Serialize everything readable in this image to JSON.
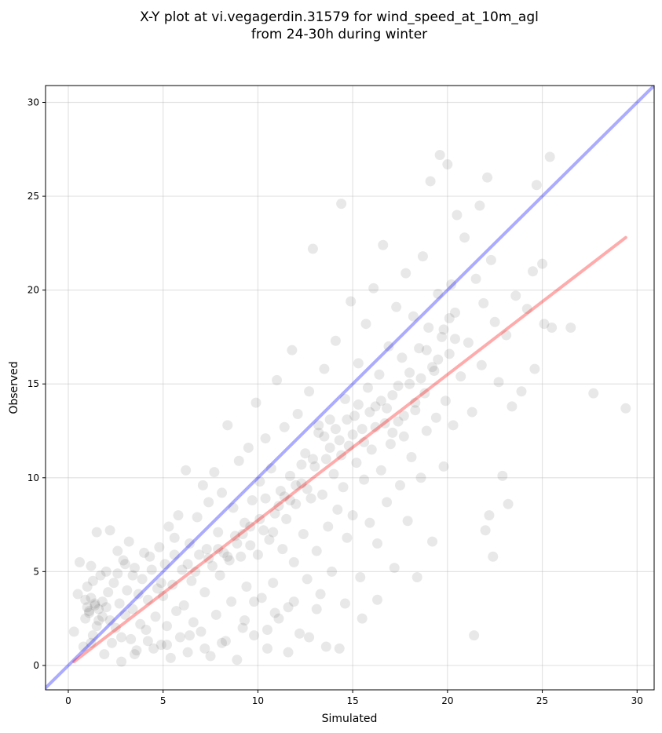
{
  "chart_data": {
    "type": "scatter",
    "title_line1": "X-Y plot at vi.vegagerdin.31579 for wind_speed_at_10m_agl",
    "title_line2": "from 24-30h during winter",
    "xlabel": "Simulated",
    "ylabel": "Observed",
    "xlim": [
      -1.2,
      30.9
    ],
    "ylim": [
      -1.3,
      30.9
    ],
    "xticks": [
      0,
      5,
      10,
      15,
      20,
      25,
      30
    ],
    "yticks": [
      0,
      5,
      10,
      15,
      20,
      25,
      30
    ],
    "grid": true,
    "colors": {
      "points": "#000000",
      "identity_line": "#0000ff",
      "fit_line": "#ff0000"
    },
    "identity_line": {
      "x": [
        -1.2,
        30.9
      ],
      "y": [
        -1.2,
        30.9
      ]
    },
    "fit_line": {
      "x": [
        0.3,
        29.4
      ],
      "y": [
        0.2,
        22.8
      ]
    },
    "points": [
      [
        0.3,
        1.8
      ],
      [
        0.5,
        3.8
      ],
      [
        0.6,
        5.5
      ],
      [
        0.8,
        1.0
      ],
      [
        0.9,
        2.5
      ],
      [
        1.0,
        3.1
      ],
      [
        1.0,
        4.2
      ],
      [
        1.1,
        2.9
      ],
      [
        1.2,
        3.6
      ],
      [
        1.2,
        5.3
      ],
      [
        1.3,
        1.6
      ],
      [
        1.4,
        3.2
      ],
      [
        1.5,
        7.1
      ],
      [
        1.6,
        2.4
      ],
      [
        1.7,
        4.8
      ],
      [
        1.8,
        3.4
      ],
      [
        1.9,
        0.6
      ],
      [
        2.0,
        5.0
      ],
      [
        2.1,
        3.9
      ],
      [
        2.2,
        7.2
      ],
      [
        2.3,
        1.2
      ],
      [
        2.4,
        4.4
      ],
      [
        2.5,
        2.0
      ],
      [
        2.6,
        6.1
      ],
      [
        2.7,
        3.3
      ],
      [
        2.8,
        0.2
      ],
      [
        2.9,
        5.6
      ],
      [
        3.0,
        2.7
      ],
      [
        3.1,
        4.0
      ],
      [
        3.2,
        6.6
      ],
      [
        3.3,
        1.4
      ],
      [
        3.4,
        3.0
      ],
      [
        3.5,
        5.2
      ],
      [
        3.6,
        0.8
      ],
      [
        3.8,
        2.2
      ],
      [
        3.9,
        4.6
      ],
      [
        4.0,
        6.0
      ],
      [
        4.1,
        1.9
      ],
      [
        4.2,
        3.5
      ],
      [
        4.3,
        5.8
      ],
      [
        4.5,
        0.9
      ],
      [
        4.6,
        2.6
      ],
      [
        4.7,
        4.1
      ],
      [
        4.8,
        6.3
      ],
      [
        4.9,
        1.1
      ],
      [
        5.0,
        3.7
      ],
      [
        5.1,
        5.4
      ],
      [
        5.2,
        2.1
      ],
      [
        5.3,
        7.4
      ],
      [
        5.4,
        0.4
      ],
      [
        5.5,
        4.3
      ],
      [
        5.6,
        6.8
      ],
      [
        5.7,
        2.9
      ],
      [
        5.8,
        8.0
      ],
      [
        5.9,
        1.5
      ],
      [
        6.0,
        5.1
      ],
      [
        6.1,
        3.2
      ],
      [
        6.2,
        10.4
      ],
      [
        6.3,
        0.7
      ],
      [
        6.4,
        6.5
      ],
      [
        6.5,
        4.5
      ],
      [
        6.6,
        2.3
      ],
      [
        6.8,
        7.9
      ],
      [
        6.9,
        5.9
      ],
      [
        7.0,
        1.8
      ],
      [
        7.1,
        9.6
      ],
      [
        7.2,
        3.9
      ],
      [
        7.3,
        6.2
      ],
      [
        7.4,
        8.7
      ],
      [
        7.5,
        0.5
      ],
      [
        7.6,
        5.3
      ],
      [
        7.7,
        10.3
      ],
      [
        7.8,
        2.7
      ],
      [
        7.9,
        7.1
      ],
      [
        8.0,
        4.8
      ],
      [
        8.1,
        9.2
      ],
      [
        8.2,
        6.0
      ],
      [
        8.3,
        1.3
      ],
      [
        8.4,
        12.8
      ],
      [
        8.5,
        5.6
      ],
      [
        8.6,
        3.4
      ],
      [
        8.7,
        8.4
      ],
      [
        8.8,
        6.9
      ],
      [
        8.9,
        0.3
      ],
      [
        9.0,
        10.9
      ],
      [
        9.1,
        5.8
      ],
      [
        9.2,
        2.0
      ],
      [
        9.3,
        7.6
      ],
      [
        9.4,
        4.2
      ],
      [
        9.5,
        11.6
      ],
      [
        9.6,
        6.4
      ],
      [
        9.7,
        8.8
      ],
      [
        9.8,
        1.6
      ],
      [
        9.9,
        14.0
      ],
      [
        10.0,
        5.9
      ],
      [
        10.1,
        9.8
      ],
      [
        10.2,
        3.6
      ],
      [
        10.3,
        7.2
      ],
      [
        10.4,
        12.1
      ],
      [
        10.5,
        0.9
      ],
      [
        10.6,
        6.7
      ],
      [
        10.7,
        10.5
      ],
      [
        10.8,
        4.4
      ],
      [
        10.9,
        8.1
      ],
      [
        11.0,
        15.2
      ],
      [
        11.1,
        2.5
      ],
      [
        11.2,
        9.3
      ],
      [
        11.3,
        6.2
      ],
      [
        11.4,
        12.7
      ],
      [
        11.5,
        7.8
      ],
      [
        11.6,
        3.1
      ],
      [
        11.7,
        10.1
      ],
      [
        11.8,
        16.8
      ],
      [
        11.9,
        5.5
      ],
      [
        12.0,
        8.6
      ],
      [
        12.1,
        13.4
      ],
      [
        12.2,
        1.7
      ],
      [
        12.3,
        9.7
      ],
      [
        12.4,
        7.0
      ],
      [
        12.5,
        11.3
      ],
      [
        12.6,
        4.6
      ],
      [
        12.7,
        14.6
      ],
      [
        12.8,
        8.9
      ],
      [
        12.9,
        22.2
      ],
      [
        13.0,
        10.6
      ],
      [
        13.1,
        6.1
      ],
      [
        13.2,
        12.4
      ],
      [
        13.3,
        3.8
      ],
      [
        13.4,
        9.1
      ],
      [
        13.5,
        15.8
      ],
      [
        13.6,
        11.0
      ],
      [
        13.7,
        7.4
      ],
      [
        13.8,
        13.1
      ],
      [
        13.9,
        5.0
      ],
      [
        14.0,
        10.2
      ],
      [
        14.1,
        17.3
      ],
      [
        14.2,
        8.3
      ],
      [
        14.3,
        12.0
      ],
      [
        14.4,
        24.6
      ],
      [
        14.5,
        9.5
      ],
      [
        14.6,
        14.2
      ],
      [
        14.7,
        6.8
      ],
      [
        14.8,
        11.7
      ],
      [
        14.9,
        19.4
      ],
      [
        15.0,
        8.0
      ],
      [
        15.1,
        13.3
      ],
      [
        15.2,
        10.8
      ],
      [
        15.3,
        16.1
      ],
      [
        15.4,
        4.7
      ],
      [
        15.5,
        12.6
      ],
      [
        15.6,
        9.9
      ],
      [
        15.7,
        18.2
      ],
      [
        15.8,
        14.8
      ],
      [
        15.9,
        7.6
      ],
      [
        16.0,
        11.5
      ],
      [
        16.1,
        20.1
      ],
      [
        16.2,
        13.8
      ],
      [
        16.3,
        6.5
      ],
      [
        16.4,
        15.5
      ],
      [
        16.5,
        10.4
      ],
      [
        16.6,
        22.4
      ],
      [
        16.7,
        12.9
      ],
      [
        16.8,
        8.7
      ],
      [
        16.9,
        17.0
      ],
      [
        17.0,
        11.8
      ],
      [
        17.1,
        14.4
      ],
      [
        17.2,
        5.2
      ],
      [
        17.3,
        19.1
      ],
      [
        17.4,
        13.0
      ],
      [
        17.5,
        9.6
      ],
      [
        17.6,
        16.4
      ],
      [
        17.7,
        12.2
      ],
      [
        17.8,
        20.9
      ],
      [
        17.9,
        7.7
      ],
      [
        18.0,
        15.0
      ],
      [
        18.1,
        11.1
      ],
      [
        18.2,
        18.6
      ],
      [
        18.3,
        13.6
      ],
      [
        18.4,
        4.7
      ],
      [
        18.5,
        16.9
      ],
      [
        18.6,
        10.0
      ],
      [
        18.7,
        21.8
      ],
      [
        18.8,
        14.5
      ],
      [
        18.9,
        12.5
      ],
      [
        19.0,
        18.0
      ],
      [
        19.1,
        25.8
      ],
      [
        19.2,
        6.6
      ],
      [
        19.3,
        15.7
      ],
      [
        19.4,
        13.2
      ],
      [
        19.5,
        19.8
      ],
      [
        19.6,
        27.2
      ],
      [
        19.7,
        17.5
      ],
      [
        19.8,
        10.6
      ],
      [
        19.9,
        14.1
      ],
      [
        20.0,
        26.7
      ],
      [
        20.1,
        16.6
      ],
      [
        20.2,
        20.3
      ],
      [
        20.3,
        12.8
      ],
      [
        20.4,
        18.8
      ],
      [
        20.5,
        24.0
      ],
      [
        20.7,
        15.4
      ],
      [
        20.9,
        22.8
      ],
      [
        21.1,
        17.2
      ],
      [
        21.3,
        13.5
      ],
      [
        21.4,
        1.6
      ],
      [
        21.5,
        20.6
      ],
      [
        21.7,
        24.5
      ],
      [
        21.8,
        16.0
      ],
      [
        21.9,
        19.3
      ],
      [
        22.0,
        7.2
      ],
      [
        22.1,
        26.0
      ],
      [
        22.2,
        8.0
      ],
      [
        22.3,
        21.6
      ],
      [
        22.4,
        5.8
      ],
      [
        22.5,
        18.3
      ],
      [
        22.7,
        15.1
      ],
      [
        22.9,
        10.1
      ],
      [
        23.1,
        17.6
      ],
      [
        23.2,
        8.6
      ],
      [
        23.4,
        13.8
      ],
      [
        23.6,
        19.7
      ],
      [
        23.9,
        14.6
      ],
      [
        24.2,
        19.0
      ],
      [
        24.5,
        21.0
      ],
      [
        24.6,
        15.8
      ],
      [
        24.7,
        25.6
      ],
      [
        25.0,
        21.4
      ],
      [
        25.1,
        18.2
      ],
      [
        25.4,
        27.1
      ],
      [
        25.5,
        18.0
      ],
      [
        26.5,
        18.0
      ],
      [
        27.7,
        14.5
      ],
      [
        29.4,
        13.7
      ],
      [
        1.1,
        2.8
      ],
      [
        1.4,
        3.3
      ],
      [
        1.6,
        3.0
      ],
      [
        1.8,
        2.6
      ],
      [
        0.9,
        3.5
      ],
      [
        1.3,
        4.5
      ],
      [
        2.0,
        3.1
      ],
      [
        1.5,
        2.1
      ],
      [
        1.2,
        1.2
      ],
      [
        2.2,
        2.4
      ],
      [
        2.6,
        4.9
      ],
      [
        3.0,
        5.4
      ],
      [
        3.4,
        4.8
      ],
      [
        3.7,
        3.8
      ],
      [
        4.4,
        5.1
      ],
      [
        4.9,
        4.4
      ],
      [
        5.6,
        5.9
      ],
      [
        6.3,
        5.4
      ],
      [
        6.7,
        5.0
      ],
      [
        7.4,
        5.7
      ],
      [
        7.9,
        6.2
      ],
      [
        8.4,
        5.8
      ],
      [
        8.9,
        6.5
      ],
      [
        9.2,
        7.0
      ],
      [
        9.6,
        7.4
      ],
      [
        10.1,
        7.8
      ],
      [
        10.4,
        8.9
      ],
      [
        10.8,
        7.1
      ],
      [
        11.1,
        8.5
      ],
      [
        11.4,
        9.0
      ],
      [
        11.7,
        8.8
      ],
      [
        12.0,
        9.6
      ],
      [
        12.3,
        10.7
      ],
      [
        12.6,
        9.4
      ],
      [
        12.9,
        11.0
      ],
      [
        13.2,
        12.8
      ],
      [
        13.5,
        12.2
      ],
      [
        13.8,
        11.6
      ],
      [
        14.1,
        12.6
      ],
      [
        14.4,
        11.2
      ],
      [
        14.7,
        13.1
      ],
      [
        15.0,
        12.3
      ],
      [
        15.3,
        13.9
      ],
      [
        15.6,
        11.9
      ],
      [
        15.9,
        13.5
      ],
      [
        16.2,
        12.7
      ],
      [
        16.5,
        14.1
      ],
      [
        16.8,
        13.7
      ],
      [
        17.1,
        12.4
      ],
      [
        17.4,
        14.9
      ],
      [
        17.7,
        13.3
      ],
      [
        18.0,
        15.6
      ],
      [
        18.3,
        14.0
      ],
      [
        18.6,
        15.3
      ],
      [
        18.9,
        16.8
      ],
      [
        19.2,
        15.9
      ],
      [
        19.5,
        16.3
      ],
      [
        19.8,
        17.9
      ],
      [
        20.1,
        18.5
      ],
      [
        20.4,
        17.4
      ],
      [
        8.1,
        1.2
      ],
      [
        7.2,
        0.9
      ],
      [
        6.4,
        1.6
      ],
      [
        5.2,
        1.1
      ],
      [
        9.3,
        2.4
      ],
      [
        10.5,
        1.9
      ],
      [
        11.6,
        0.7
      ],
      [
        12.7,
        1.5
      ],
      [
        13.6,
        1.0
      ],
      [
        14.3,
        0.9
      ],
      [
        4.2,
        1.3
      ],
      [
        3.5,
        0.6
      ],
      [
        2.8,
        1.5
      ],
      [
        9.8,
        3.4
      ],
      [
        10.9,
        2.8
      ],
      [
        11.9,
        3.4
      ],
      [
        13.1,
        3.0
      ],
      [
        14.6,
        3.3
      ],
      [
        15.5,
        2.5
      ],
      [
        16.3,
        3.5
      ]
    ]
  }
}
